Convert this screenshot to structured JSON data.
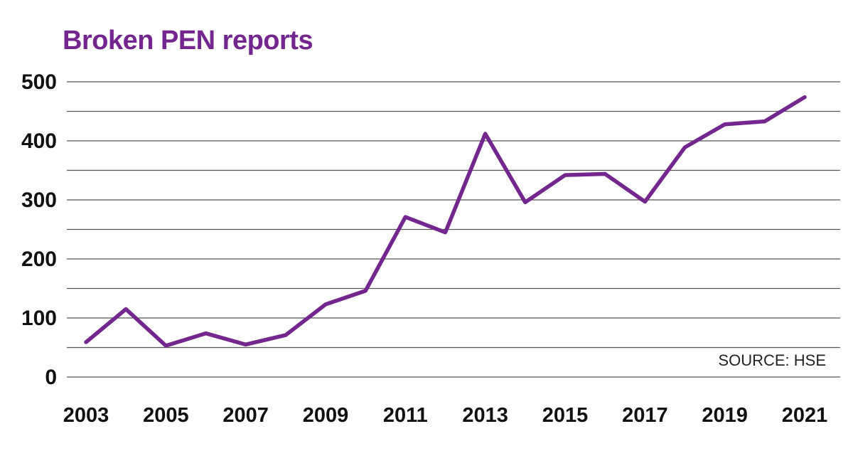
{
  "chart_data": {
    "type": "line",
    "title": "Broken PEN reports",
    "source": "SOURCE: HSE",
    "xlabel": "",
    "ylabel": "",
    "x": [
      2003,
      2004,
      2005,
      2006,
      2007,
      2008,
      2009,
      2010,
      2011,
      2012,
      2013,
      2014,
      2015,
      2016,
      2017,
      2018,
      2019,
      2020,
      2021
    ],
    "series": [
      {
        "name": "Broken PEN reports",
        "values": [
          59,
          115,
          53,
          74,
          55,
          71,
          123,
          146,
          271,
          245,
          412,
          296,
          342,
          344,
          297,
          389,
          428,
          433,
          474
        ]
      }
    ],
    "yticks": [
      "500",
      "400",
      "300",
      "200",
      "100",
      "0"
    ],
    "xticks": [
      "2003",
      "2005",
      "2007",
      "2009",
      "2011",
      "2013",
      "2015",
      "2017",
      "2019",
      "2021"
    ],
    "ylim": [
      0,
      500
    ],
    "xlim": [
      2003,
      2021
    ],
    "grid": true,
    "colors": {
      "line": "#74268f",
      "title": "#74268f",
      "grid": "#555555"
    }
  }
}
